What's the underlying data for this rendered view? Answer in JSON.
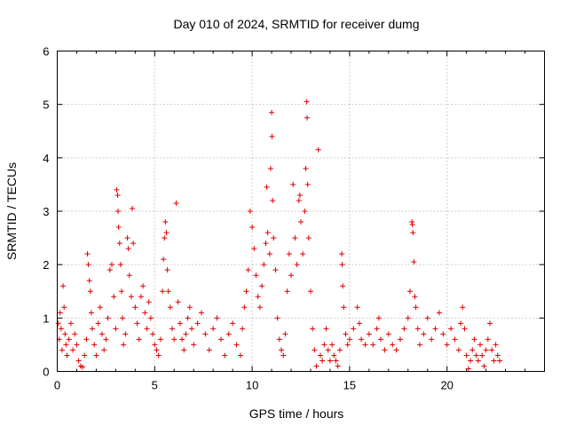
{
  "chart_data": {
    "type": "scatter",
    "title": "Day 010 of 2024, SRMTID for receiver dumg",
    "xlabel": "GPS time / hours",
    "ylabel": "SRMTID / TECUs",
    "xlim": [
      0,
      25
    ],
    "ylim": [
      0,
      6
    ],
    "xticks": [
      0,
      5,
      10,
      15,
      20
    ],
    "yticks": [
      0,
      1,
      2,
      3,
      4,
      5,
      6
    ],
    "xtick_labels": [
      "0",
      "5",
      "10",
      "15",
      "20"
    ],
    "ytick_labels": [
      "0",
      "1",
      "2",
      "3",
      "4",
      "5",
      "6"
    ],
    "grid": true,
    "marker": "+",
    "series": [
      {
        "name": "SRMTID",
        "color": "#e00000",
        "points": [
          [
            0.05,
            0.9
          ],
          [
            0.1,
            0.6
          ],
          [
            0.15,
            1.1
          ],
          [
            0.2,
            0.8
          ],
          [
            0.25,
            0.4
          ],
          [
            0.3,
            1.6
          ],
          [
            0.35,
            1.2
          ],
          [
            0.4,
            0.7
          ],
          [
            0.45,
            0.5
          ],
          [
            0.5,
            0.3
          ],
          [
            0.6,
            0.6
          ],
          [
            0.7,
            0.9
          ],
          [
            0.8,
            0.4
          ],
          [
            0.9,
            0.7
          ],
          [
            1.0,
            0.5
          ],
          [
            1.1,
            0.2
          ],
          [
            1.2,
            0.1
          ],
          [
            1.3,
            0.08
          ],
          [
            1.4,
            0.3
          ],
          [
            1.5,
            0.6
          ],
          [
            1.55,
            2.2
          ],
          [
            1.6,
            2.0
          ],
          [
            1.65,
            1.7
          ],
          [
            1.7,
            1.5
          ],
          [
            1.75,
            1.1
          ],
          [
            1.8,
            0.8
          ],
          [
            1.9,
            0.5
          ],
          [
            2.0,
            0.3
          ],
          [
            2.1,
            0.9
          ],
          [
            2.2,
            1.2
          ],
          [
            2.3,
            0.7
          ],
          [
            2.4,
            0.4
          ],
          [
            2.5,
            0.6
          ],
          [
            2.6,
            1.0
          ],
          [
            2.7,
            1.9
          ],
          [
            2.8,
            2.0
          ],
          [
            2.9,
            1.4
          ],
          [
            3.0,
            0.8
          ],
          [
            3.05,
            3.4
          ],
          [
            3.1,
            3.3
          ],
          [
            3.12,
            3.0
          ],
          [
            3.15,
            2.7
          ],
          [
            3.2,
            2.4
          ],
          [
            3.25,
            2.0
          ],
          [
            3.3,
            1.5
          ],
          [
            3.35,
            1.0
          ],
          [
            3.4,
            0.5
          ],
          [
            3.5,
            0.7
          ],
          [
            3.6,
            2.5
          ],
          [
            3.65,
            2.3
          ],
          [
            3.7,
            1.8
          ],
          [
            3.8,
            1.4
          ],
          [
            3.85,
            3.05
          ],
          [
            3.9,
            2.4
          ],
          [
            4.0,
            1.2
          ],
          [
            4.1,
            0.9
          ],
          [
            4.2,
            0.6
          ],
          [
            4.3,
            1.4
          ],
          [
            4.4,
            1.6
          ],
          [
            4.5,
            1.1
          ],
          [
            4.6,
            0.8
          ],
          [
            4.7,
            1.3
          ],
          [
            4.8,
            1.0
          ],
          [
            4.9,
            0.7
          ],
          [
            5.0,
            0.5
          ],
          [
            5.1,
            0.4
          ],
          [
            5.2,
            0.3
          ],
          [
            5.3,
            0.6
          ],
          [
            5.4,
            1.5
          ],
          [
            5.45,
            2.1
          ],
          [
            5.5,
            2.5
          ],
          [
            5.55,
            2.8
          ],
          [
            5.6,
            2.6
          ],
          [
            5.65,
            1.9
          ],
          [
            5.7,
            1.5
          ],
          [
            5.8,
            1.2
          ],
          [
            5.9,
            0.8
          ],
          [
            6.0,
            0.6
          ],
          [
            6.1,
            3.15
          ],
          [
            6.2,
            1.3
          ],
          [
            6.3,
            0.9
          ],
          [
            6.4,
            0.6
          ],
          [
            6.5,
            0.4
          ],
          [
            6.6,
            0.7
          ],
          [
            6.7,
            1.0
          ],
          [
            6.8,
            1.2
          ],
          [
            6.9,
            0.8
          ],
          [
            7.0,
            0.5
          ],
          [
            7.2,
            0.9
          ],
          [
            7.4,
            1.1
          ],
          [
            7.6,
            0.7
          ],
          [
            7.8,
            0.4
          ],
          [
            8.0,
            0.8
          ],
          [
            8.2,
            1.0
          ],
          [
            8.4,
            0.6
          ],
          [
            8.6,
            0.3
          ],
          [
            8.8,
            0.7
          ],
          [
            9.0,
            0.9
          ],
          [
            9.2,
            0.5
          ],
          [
            9.4,
            0.3
          ],
          [
            9.5,
            0.8
          ],
          [
            9.6,
            1.2
          ],
          [
            9.7,
            1.5
          ],
          [
            9.8,
            1.9
          ],
          [
            9.9,
            3.0
          ],
          [
            10.0,
            2.7
          ],
          [
            10.1,
            2.3
          ],
          [
            10.2,
            1.8
          ],
          [
            10.3,
            1.4
          ],
          [
            10.4,
            1.2
          ],
          [
            10.5,
            1.6
          ],
          [
            10.6,
            2.0
          ],
          [
            10.7,
            2.4
          ],
          [
            10.75,
            3.45
          ],
          [
            10.8,
            2.6
          ],
          [
            10.9,
            2.2
          ],
          [
            10.95,
            3.8
          ],
          [
            11.0,
            4.85
          ],
          [
            11.02,
            4.4
          ],
          [
            11.05,
            3.2
          ],
          [
            11.1,
            2.5
          ],
          [
            11.2,
            1.9
          ],
          [
            11.3,
            1.0
          ],
          [
            11.4,
            0.6
          ],
          [
            11.5,
            0.4
          ],
          [
            11.6,
            0.3
          ],
          [
            11.7,
            0.7
          ],
          [
            11.8,
            1.5
          ],
          [
            11.9,
            2.2
          ],
          [
            12.0,
            1.8
          ],
          [
            12.1,
            3.5
          ],
          [
            12.2,
            2.5
          ],
          [
            12.3,
            2.0
          ],
          [
            12.4,
            3.2
          ],
          [
            12.45,
            3.3
          ],
          [
            12.5,
            2.8
          ],
          [
            12.6,
            2.2
          ],
          [
            12.7,
            3.0
          ],
          [
            12.75,
            3.8
          ],
          [
            12.8,
            5.05
          ],
          [
            12.82,
            4.75
          ],
          [
            12.85,
            3.5
          ],
          [
            12.9,
            2.5
          ],
          [
            13.0,
            1.5
          ],
          [
            13.1,
            0.8
          ],
          [
            13.2,
            0.4
          ],
          [
            13.3,
            0.1
          ],
          [
            13.4,
            4.15
          ],
          [
            13.5,
            0.3
          ],
          [
            13.6,
            0.2
          ],
          [
            13.7,
            0.5
          ],
          [
            13.8,
            0.8
          ],
          [
            13.9,
            0.4
          ],
          [
            14.0,
            0.2
          ],
          [
            14.1,
            0.5
          ],
          [
            14.2,
            0.3
          ],
          [
            14.3,
            0.2
          ],
          [
            14.4,
            0.1
          ],
          [
            14.5,
            0.4
          ],
          [
            14.6,
            2.2
          ],
          [
            14.62,
            2.0
          ],
          [
            14.65,
            1.6
          ],
          [
            14.7,
            1.2
          ],
          [
            14.8,
            0.7
          ],
          [
            14.9,
            0.5
          ],
          [
            15.0,
            0.6
          ],
          [
            15.2,
            0.8
          ],
          [
            15.4,
            1.2
          ],
          [
            15.5,
            0.9
          ],
          [
            15.6,
            0.6
          ],
          [
            15.8,
            0.5
          ],
          [
            16.0,
            0.7
          ],
          [
            16.2,
            0.5
          ],
          [
            16.4,
            0.8
          ],
          [
            16.5,
            1.0
          ],
          [
            16.6,
            0.6
          ],
          [
            16.8,
            0.4
          ],
          [
            17.0,
            0.7
          ],
          [
            17.2,
            0.5
          ],
          [
            17.4,
            0.4
          ],
          [
            17.6,
            0.6
          ],
          [
            17.8,
            0.8
          ],
          [
            18.0,
            1.0
          ],
          [
            18.1,
            1.5
          ],
          [
            18.2,
            2.8
          ],
          [
            18.22,
            2.75
          ],
          [
            18.25,
            2.6
          ],
          [
            18.3,
            2.05
          ],
          [
            18.35,
            1.4
          ],
          [
            18.4,
            1.2
          ],
          [
            18.5,
            0.8
          ],
          [
            18.6,
            0.5
          ],
          [
            18.8,
            0.7
          ],
          [
            19.0,
            1.0
          ],
          [
            19.2,
            0.6
          ],
          [
            19.4,
            0.8
          ],
          [
            19.6,
            1.1
          ],
          [
            19.8,
            0.7
          ],
          [
            20.0,
            0.5
          ],
          [
            20.2,
            0.8
          ],
          [
            20.4,
            0.6
          ],
          [
            20.6,
            0.4
          ],
          [
            20.7,
            0.9
          ],
          [
            20.8,
            1.2
          ],
          [
            20.9,
            0.8
          ],
          [
            21.0,
            0.3
          ],
          [
            21.1,
            0.05
          ],
          [
            21.2,
            0.2
          ],
          [
            21.3,
            0.4
          ],
          [
            21.4,
            0.6
          ],
          [
            21.5,
            0.3
          ],
          [
            21.6,
            0.2
          ],
          [
            21.7,
            0.5
          ],
          [
            21.8,
            0.3
          ],
          [
            21.9,
            0.1
          ],
          [
            22.0,
            0.4
          ],
          [
            22.1,
            0.6
          ],
          [
            22.2,
            0.9
          ],
          [
            22.3,
            0.4
          ],
          [
            22.4,
            0.2
          ],
          [
            22.5,
            0.5
          ],
          [
            22.6,
            0.3
          ],
          [
            22.7,
            0.2
          ]
        ]
      }
    ]
  }
}
